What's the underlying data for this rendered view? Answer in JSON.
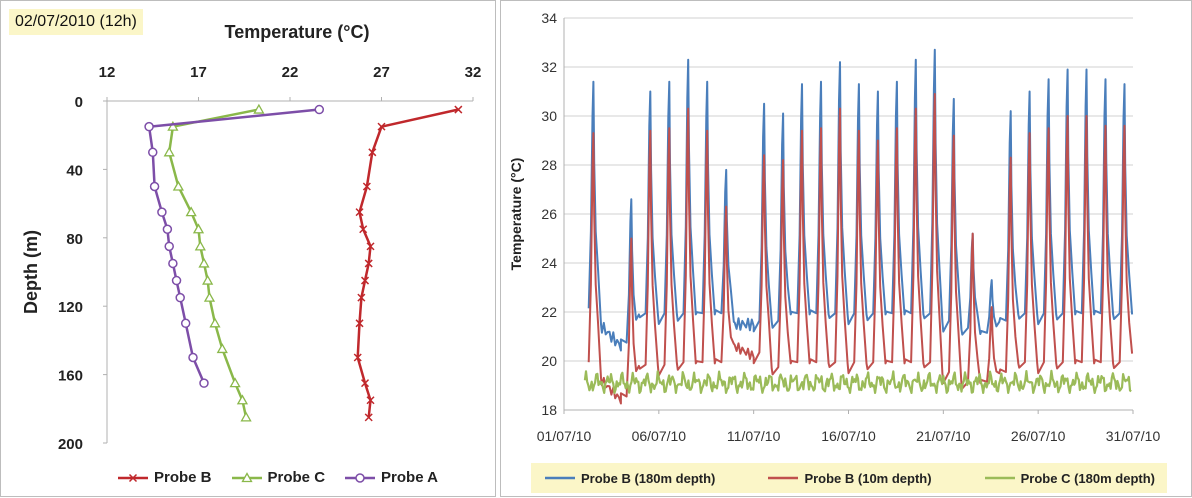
{
  "left": {
    "date_label": "02/07/2010 (12h)",
    "chart_data": {
      "type": "line",
      "title": "Temperature (°C)",
      "xlabel": "Temperature (°C)",
      "ylabel": "Depth (m)",
      "xlim": [
        12,
        32
      ],
      "ylim": [
        0,
        200
      ],
      "y_inverted": true,
      "x_axis_position": "top",
      "x_ticks": [
        "12",
        "17",
        "22",
        "27",
        "32"
      ],
      "y_ticks": [
        "0",
        "40",
        "80",
        "120",
        "160",
        "200"
      ],
      "grid": false,
      "legend": "bottom",
      "series": [
        {
          "name": "Probe B",
          "color": "#c0282c",
          "marker": "x",
          "points": [
            [
              31.2,
              5
            ],
            [
              27.0,
              15
            ],
            [
              26.5,
              30
            ],
            [
              26.2,
              50
            ],
            [
              25.8,
              65
            ],
            [
              26.0,
              75
            ],
            [
              26.4,
              85
            ],
            [
              26.3,
              95
            ],
            [
              26.1,
              105
            ],
            [
              25.9,
              115
            ],
            [
              25.8,
              130
            ],
            [
              25.7,
              150
            ],
            [
              26.1,
              165
            ],
            [
              26.4,
              175
            ],
            [
              26.3,
              185
            ]
          ]
        },
        {
          "name": "Probe C",
          "color": "#8ab84a",
          "marker": "triangle",
          "points": [
            [
              20.3,
              5
            ],
            [
              15.6,
              15
            ],
            [
              15.4,
              30
            ],
            [
              15.9,
              50
            ],
            [
              16.6,
              65
            ],
            [
              17.0,
              75
            ],
            [
              17.1,
              85
            ],
            [
              17.3,
              95
            ],
            [
              17.5,
              105
            ],
            [
              17.6,
              115
            ],
            [
              17.9,
              130
            ],
            [
              18.3,
              145
            ],
            [
              19.0,
              165
            ],
            [
              19.4,
              175
            ],
            [
              19.6,
              185
            ]
          ]
        },
        {
          "name": "Probe A",
          "color": "#7d4ea8",
          "marker": "circle",
          "points": [
            [
              23.6,
              5
            ],
            [
              14.3,
              15
            ],
            [
              14.5,
              30
            ],
            [
              14.6,
              50
            ],
            [
              15.0,
              65
            ],
            [
              15.3,
              75
            ],
            [
              15.4,
              85
            ],
            [
              15.6,
              95
            ],
            [
              15.8,
              105
            ],
            [
              16.0,
              115
            ],
            [
              16.3,
              130
            ],
            [
              16.7,
              150
            ],
            [
              17.3,
              165
            ]
          ]
        }
      ]
    }
  },
  "right": {
    "chart_data": {
      "type": "line",
      "ylabel": "Temperature (°C)",
      "xlabel": "",
      "xlim": [
        "01/07/10",
        "31/07/10"
      ],
      "ylim": [
        18,
        34
      ],
      "x_ticks": [
        "01/07/10",
        "06/07/10",
        "11/07/10",
        "16/07/10",
        "21/07/10",
        "26/07/10",
        "31/07/10"
      ],
      "y_ticks": [
        "18",
        "20",
        "22",
        "24",
        "26",
        "28",
        "30",
        "32",
        "34"
      ],
      "grid": "horizontal",
      "legend": "bottom",
      "x_start": "02/07/10",
      "x_end": "31/07/10",
      "daily_peak_dates": [
        "02/07/10",
        "03/07/10",
        "04/07/10",
        "05/07/10",
        "06/07/10",
        "07/07/10",
        "08/07/10",
        "09/07/10",
        "10/07/10",
        "11/07/10",
        "12/07/10",
        "13/07/10",
        "14/07/10",
        "15/07/10",
        "16/07/10",
        "17/07/10",
        "18/07/10",
        "19/07/10",
        "20/07/10",
        "21/07/10",
        "22/07/10",
        "23/07/10",
        "24/07/10",
        "25/07/10",
        "26/07/10",
        "27/07/10",
        "28/07/10",
        "29/07/10",
        "30/07/10",
        "31/07/10"
      ],
      "series": [
        {
          "name": "Probe B (180m depth)",
          "color": "#4a7ebb",
          "daily_peaks": [
            31.4,
            null,
            26.6,
            31.0,
            31.4,
            32.3,
            31.4,
            27.8,
            null,
            30.5,
            30.1,
            31.3,
            31.4,
            32.2,
            31.3,
            31.0,
            31.4,
            32.3,
            32.7,
            30.7,
            25.2,
            23.3,
            30.2,
            31.0,
            31.5,
            31.9,
            31.9,
            31.5,
            31.3,
            null
          ],
          "daily_baseline": [
            22.0,
            21.4,
            20.6,
            21.8,
            21.8,
            21.8,
            21.8,
            21.8,
            21.5,
            21.5,
            21.5,
            21.8,
            21.8,
            21.8,
            21.8,
            21.8,
            21.8,
            21.8,
            21.8,
            21.5,
            21.2,
            21.0,
            21.5,
            21.8,
            21.8,
            21.8,
            21.8,
            21.8,
            21.8,
            21.8
          ]
        },
        {
          "name": "Probe B (10m depth)",
          "color": "#c0504d",
          "daily_peaks": [
            29.3,
            null,
            25.0,
            29.4,
            29.5,
            30.3,
            29.4,
            26.3,
            null,
            28.4,
            28.2,
            29.4,
            29.5,
            30.3,
            29.4,
            29.0,
            29.5,
            30.3,
            30.9,
            29.2,
            25.2,
            22.2,
            28.3,
            29.3,
            29.5,
            30.0,
            30.0,
            29.6,
            29.6,
            null
          ],
          "daily_baseline": [
            19.8,
            19.2,
            18.4,
            19.7,
            19.7,
            19.8,
            19.8,
            19.8,
            20.6,
            20.2,
            19.6,
            19.8,
            19.8,
            19.8,
            19.8,
            19.8,
            19.8,
            19.8,
            19.8,
            19.4,
            19.0,
            19.0,
            19.4,
            19.8,
            19.8,
            19.8,
            19.8,
            19.8,
            19.8,
            20.2
          ]
        },
        {
          "name": "Probe C (180m depth)",
          "color": "#9bbb59",
          "mean": 19.1,
          "range": [
            18.7,
            19.7
          ]
        }
      ]
    }
  }
}
